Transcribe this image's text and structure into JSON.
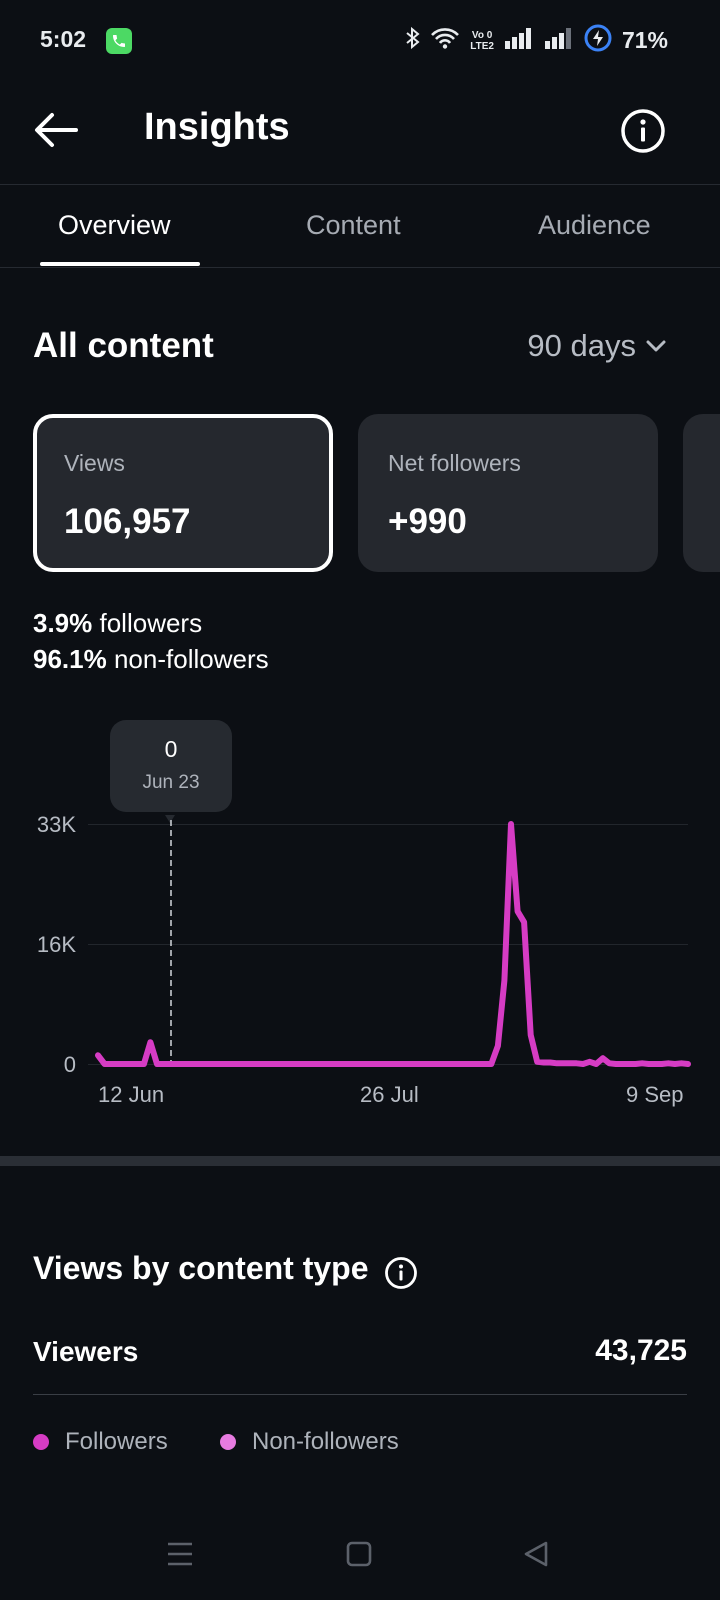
{
  "status_bar": {
    "time": "5:02",
    "network_label_top": "Vo 0",
    "network_label_bottom": "LTE2",
    "battery": "71%",
    "icons": [
      "phone-call-icon",
      "bluetooth-icon",
      "wifi-icon",
      "signal-icon",
      "battery-icon"
    ]
  },
  "header": {
    "title": "Insights",
    "back_icon": "arrow-left-icon",
    "info_icon": "info-icon"
  },
  "tabs": [
    {
      "label": "Overview",
      "active": true
    },
    {
      "label": "Content",
      "active": false
    },
    {
      "label": "Audience",
      "active": false
    }
  ],
  "section": {
    "title": "All content",
    "range": "90 days"
  },
  "metrics": [
    {
      "label": "Views",
      "value": "106,957",
      "selected": true
    },
    {
      "label": "Net followers",
      "value": "+990",
      "selected": false
    }
  ],
  "split": {
    "followers_pct": "3.9%",
    "followers_label": "followers",
    "nonfollowers_pct": "96.1%",
    "nonfollowers_label": "non-followers"
  },
  "chart_tooltip": {
    "value": "0",
    "date": "Jun 23"
  },
  "chart_data": {
    "type": "line",
    "x_tick_labels": [
      "12 Jun",
      "26 Jul",
      "9 Sep"
    ],
    "y_tick_labels": [
      "0",
      "16K",
      "33K"
    ],
    "ylim": [
      0,
      33000
    ],
    "grid": true,
    "colors": {
      "line": "#d63cc4"
    },
    "series": [
      {
        "values": [
          1200,
          0,
          0,
          0,
          0,
          0,
          0,
          0,
          3000,
          0,
          0,
          0,
          0,
          0,
          0,
          0,
          0,
          0,
          0,
          0,
          0,
          0,
          0,
          0,
          0,
          0,
          0,
          0,
          0,
          0,
          0,
          0,
          0,
          0,
          0,
          0,
          0,
          0,
          0,
          0,
          0,
          0,
          0,
          0,
          0,
          0,
          0,
          0,
          0,
          0,
          0,
          0,
          0,
          0,
          0,
          0,
          0,
          0,
          0,
          0,
          0,
          2500,
          11500,
          33000,
          21000,
          19500,
          4000,
          300,
          200,
          200,
          100,
          100,
          100,
          100,
          0,
          300,
          0,
          800,
          100,
          0,
          0,
          0,
          0,
          100,
          0,
          0,
          0,
          100,
          0,
          100,
          0
        ]
      }
    ]
  },
  "content_type": {
    "title": "Views by content type",
    "info_icon": "info-icon",
    "viewers_label": "Viewers",
    "viewers_value": "43,725",
    "legend": [
      {
        "label": "Followers",
        "color": "#d63cc4"
      },
      {
        "label": "Non-followers",
        "color": "#e77be0"
      }
    ]
  },
  "nav_bar": {
    "icons": [
      "menu-icon",
      "home-square-icon",
      "back-triangle-icon"
    ]
  }
}
